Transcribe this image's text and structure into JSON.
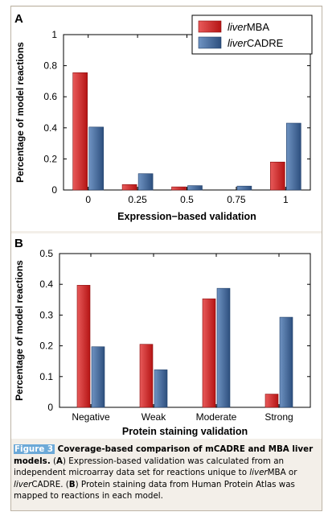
{
  "chart_data": [
    {
      "panel_label": "A",
      "type": "bar",
      "categories": [
        "0",
        "0.25",
        "0.5",
        "0.75",
        "1"
      ],
      "series": [
        {
          "name_italic": "liver",
          "name_rest": "MBA",
          "color": "#d42a2a",
          "values": [
            0.755,
            0.035,
            0.02,
            0.0,
            0.18
          ]
        },
        {
          "name_italic": "liver",
          "name_rest": "CADRE",
          "color": "#3b6395",
          "values": [
            0.405,
            0.105,
            0.028,
            0.025,
            0.43
          ]
        }
      ],
      "xlabel": "Expression−based validation",
      "ylabel": "Percentage of model reactions",
      "ylim": [
        0,
        1
      ],
      "yticks": [
        "0",
        "0.2",
        "0.4",
        "0.6",
        "0.8",
        "1"
      ],
      "legend": "top-right",
      "grid": false
    },
    {
      "panel_label": "B",
      "type": "bar",
      "categories": [
        "Negative",
        "Weak",
        "Moderate",
        "Strong"
      ],
      "series": [
        {
          "color": "#d42a2a",
          "values": [
            0.397,
            0.205,
            0.353,
            0.043
          ]
        },
        {
          "color": "#3b6395",
          "values": [
            0.197,
            0.122,
            0.387,
            0.293
          ]
        }
      ],
      "xlabel": "Protein staining validation",
      "ylabel": "Percentage of model reactions",
      "ylim": [
        0,
        0.5
      ],
      "yticks": [
        "0",
        "0.1",
        "0.2",
        "0.3",
        "0.4",
        "0.5"
      ],
      "grid": false
    }
  ],
  "caption": {
    "fig_label": "Figure 3",
    "title": " Coverage-based comparison of mCADRE and MBA liver models.",
    "p1": " (",
    "a": "A",
    "p2": ") Expression-based validation was calculated from an independent microarray data set for reactions unique to ",
    "mba_i": "liver",
    "mba": "MBA or ",
    "cadre_i": "liver",
    "cadre": "CADRE. (",
    "b": "B",
    "p3": ") Protein staining data from Human Protein Atlas was mapped to reactions in each model."
  }
}
